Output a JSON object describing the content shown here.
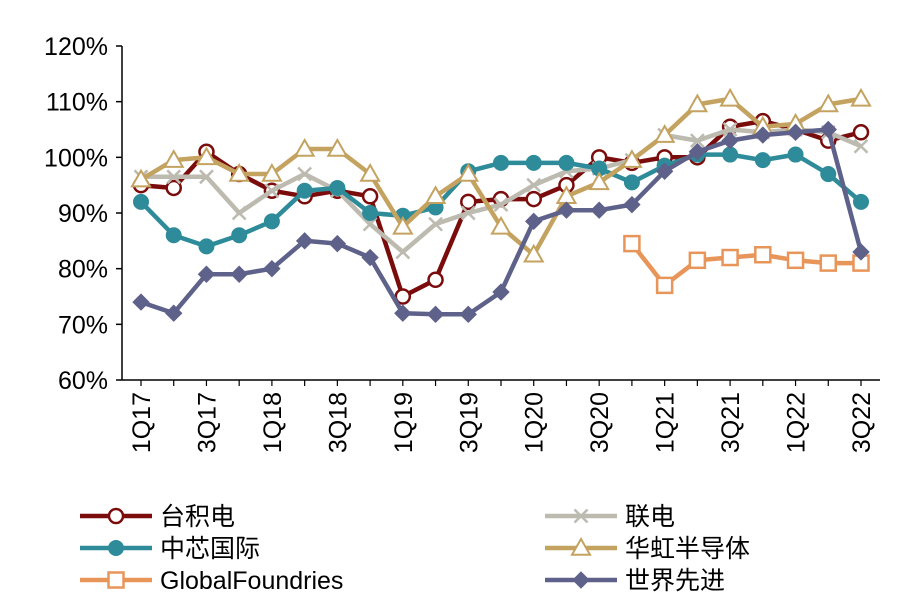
{
  "chart_data": {
    "type": "line",
    "title": "",
    "xlabel": "",
    "ylabel": "",
    "ylim": [
      0.6,
      1.2
    ],
    "y_ticks": [
      "60%",
      "70%",
      "80%",
      "90%",
      "100%",
      "110%",
      "120%"
    ],
    "y_tick_values": [
      0.6,
      0.7,
      0.8,
      0.9,
      1.0,
      1.1,
      1.2
    ],
    "grid": false,
    "legend_position": "bottom",
    "x": [
      "1Q17",
      "2Q17",
      "3Q17",
      "4Q17",
      "1Q18",
      "2Q18",
      "3Q18",
      "4Q18",
      "1Q19",
      "2Q19",
      "3Q19",
      "4Q19",
      "1Q20",
      "2Q20",
      "3Q20",
      "4Q20",
      "1Q21",
      "2Q21",
      "3Q21",
      "4Q21",
      "1Q22",
      "2Q22",
      "3Q22"
    ],
    "x_tick_labels": [
      "1Q17",
      "3Q17",
      "1Q18",
      "3Q18",
      "1Q19",
      "3Q19",
      "1Q20",
      "3Q20",
      "1Q21",
      "3Q21",
      "1Q22",
      "3Q22"
    ],
    "series": [
      {
        "name": "台积电",
        "color": "#7B0C0C",
        "marker": "circle-open",
        "values": [
          0.95,
          0.945,
          1.01,
          0.97,
          0.94,
          0.93,
          0.94,
          0.93,
          0.75,
          0.78,
          0.92,
          0.925,
          0.925,
          0.95,
          1.0,
          0.99,
          1.0,
          1.0,
          1.055,
          1.065,
          1.05,
          1.03,
          1.045
        ]
      },
      {
        "name": "联电",
        "color": "#BDBAB0",
        "marker": "x",
        "values": [
          0.965,
          0.965,
          0.965,
          0.9,
          0.94,
          0.97,
          0.94,
          0.88,
          0.83,
          0.88,
          0.9,
          0.915,
          0.95,
          0.975,
          0.98,
          0.995,
          1.04,
          1.03,
          1.05,
          1.045,
          1.05,
          1.045,
          1.02
        ]
      },
      {
        "name": "中芯国际",
        "color": "#2E8B99",
        "marker": "circle-filled",
        "values": [
          0.92,
          0.86,
          0.84,
          0.86,
          0.885,
          0.94,
          0.945,
          0.9,
          0.895,
          0.91,
          0.975,
          0.99,
          0.99,
          0.99,
          0.98,
          0.955,
          0.985,
          1.005,
          1.005,
          0.995,
          1.005,
          0.97,
          0.92
        ]
      },
      {
        "name": "华虹半导体",
        "color": "#C4A25F",
        "marker": "triangle-open",
        "values": [
          0.96,
          0.995,
          1.0,
          0.97,
          0.97,
          1.015,
          1.015,
          0.97,
          0.875,
          0.93,
          0.97,
          0.875,
          0.825,
          0.93,
          0.955,
          0.995,
          1.04,
          1.095,
          1.105,
          1.055,
          1.06,
          1.095,
          1.105
        ]
      },
      {
        "name": "GlobalFoundries",
        "color": "#E8955A",
        "marker": "square-open",
        "values": [
          null,
          null,
          null,
          null,
          null,
          null,
          null,
          null,
          null,
          null,
          null,
          null,
          null,
          null,
          null,
          0.845,
          0.77,
          0.815,
          0.82,
          0.825,
          0.815,
          0.81,
          0.81
        ]
      },
      {
        "name": "世界先进",
        "color": "#5E6189",
        "marker": "diamond-filled",
        "values": [
          0.74,
          0.72,
          0.79,
          0.79,
          0.8,
          0.85,
          0.845,
          0.82,
          0.72,
          0.718,
          0.718,
          0.758,
          0.885,
          0.905,
          0.905,
          0.915,
          0.975,
          1.01,
          1.03,
          1.04,
          1.045,
          1.05,
          0.83
        ]
      }
    ]
  }
}
